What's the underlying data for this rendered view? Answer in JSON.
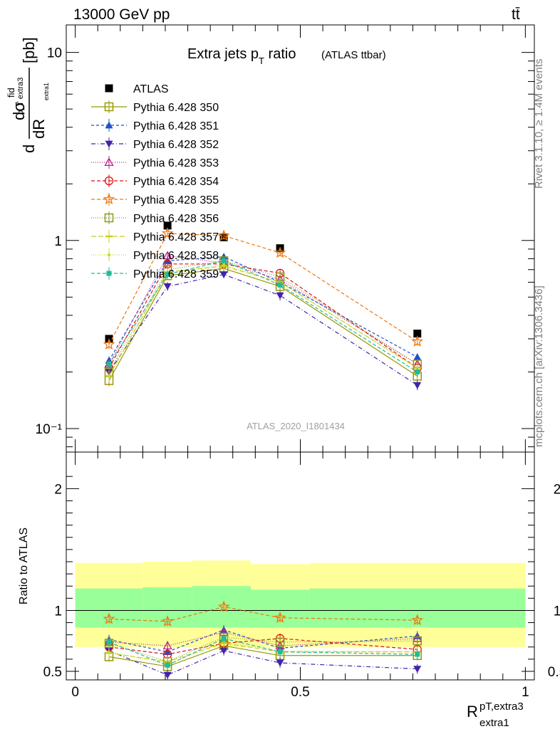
{
  "header": {
    "energy": "13000 GeV pp",
    "process": "tt̄",
    "rivet_version": "Rivet 3.1.10, ≥ 1.4M events",
    "source": "mcplots.cern.ch [arXiv:1306.3436]",
    "analysis": "ATLAS_2020_I1801434"
  },
  "chart_data": [
    {
      "type": "line",
      "title": "Extra jets p",
      "title_sub": "T",
      "title_tail": " ratio",
      "subtitle": "(ATLAS ttbar)",
      "ylabel_parts": {
        "d": "d",
        "sigma": "dσ",
        "fid": "fid",
        "dR": "dR",
        "R_sub": "p_T extra3",
        "dR_sub": "extra1",
        "unit": "[pb]"
      },
      "yscale": "log",
      "ylim": [
        0.075,
        14
      ],
      "y_ticks": [
        {
          "value": 10,
          "label": "10"
        },
        {
          "value": 1,
          "label": "1"
        },
        {
          "value": 0.1,
          "label": "10⁻¹"
        }
      ],
      "xlim": [
        -0.02,
        1.02
      ],
      "legend_position": "top-left",
      "x": [
        0.075,
        0.205,
        0.33,
        0.455,
        0.76
      ],
      "series": [
        {
          "name": "ATLAS",
          "color": "#000000",
          "marker": "square-filled",
          "dash": "none",
          "values": [
            0.3,
            1.2,
            1.04,
            0.91,
            0.32
          ],
          "err": [
            0.012,
            0.03,
            0.03,
            0.03,
            0.012
          ]
        },
        {
          "name": "Pythia 6.428 350",
          "color": "#999900",
          "marker": "square-open",
          "dash": "solid",
          "values": [
            0.18,
            0.65,
            0.71,
            0.57,
            0.19
          ],
          "err": [
            0.012,
            0.03,
            0.03,
            0.03,
            0.01
          ]
        },
        {
          "name": "Pythia 6.428 351",
          "color": "#1f50c8",
          "marker": "triangle-up-filled",
          "dash": "4,3",
          "values": [
            0.23,
            0.78,
            0.82,
            0.6,
            0.24
          ],
          "err": [
            0.012,
            0.03,
            0.03,
            0.03,
            0.01
          ]
        },
        {
          "name": "Pythia 6.428 352",
          "color": "#4422aa",
          "marker": "triangle-down-filled",
          "dash": "6,3,1,3",
          "values": [
            0.2,
            0.57,
            0.66,
            0.51,
            0.17
          ],
          "err": [
            0.012,
            0.03,
            0.03,
            0.03,
            0.01
          ]
        },
        {
          "name": "Pythia 6.428 353",
          "color": "#bb2288",
          "marker": "triangle-up-open",
          "dash": "1,2",
          "values": [
            0.22,
            0.83,
            0.76,
            0.62,
            0.22
          ],
          "err": [
            0.012,
            0.03,
            0.03,
            0.03,
            0.01
          ]
        },
        {
          "name": "Pythia 6.428 354",
          "color": "#dd1111",
          "marker": "circle-open",
          "dash": "5,3",
          "values": [
            0.21,
            0.75,
            0.75,
            0.67,
            0.21
          ],
          "err": [
            0.012,
            0.03,
            0.03,
            0.03,
            0.01
          ]
        },
        {
          "name": "Pythia 6.428 355",
          "color": "#ee7711",
          "marker": "star-open",
          "dash": "5,3",
          "values": [
            0.28,
            1.09,
            1.06,
            0.86,
            0.29
          ],
          "err": [
            0.015,
            0.05,
            0.05,
            0.04,
            0.015
          ]
        },
        {
          "name": "Pythia 6.428 356",
          "color": "#88991a",
          "marker": "square-open",
          "dash": "1,2",
          "values": [
            0.2,
            0.7,
            0.78,
            0.64,
            0.22
          ],
          "err": [
            0.012,
            0.03,
            0.03,
            0.03,
            0.01
          ]
        },
        {
          "name": "Pythia 6.428 357",
          "color": "#cccc22",
          "marker": "dash",
          "dash": "7,3",
          "values": [
            0.19,
            0.68,
            0.73,
            0.6,
            0.21
          ],
          "err": [
            0.012,
            0.03,
            0.03,
            0.03,
            0.01
          ]
        },
        {
          "name": "Pythia 6.428 358",
          "color": "#bbdd33",
          "marker": "dot",
          "dash": "1,2",
          "values": [
            0.19,
            0.67,
            0.74,
            0.6,
            0.21
          ],
          "err": [
            0.012,
            0.03,
            0.03,
            0.03,
            0.01
          ]
        },
        {
          "name": "Pythia 6.428 359",
          "color": "#22bb99",
          "marker": "square-filled-small",
          "dash": "5,3",
          "values": [
            0.22,
            0.66,
            0.78,
            0.58,
            0.2
          ],
          "err": [
            0.012,
            0.03,
            0.03,
            0.03,
            0.01
          ]
        }
      ]
    },
    {
      "type": "line",
      "ylabel": "Ratio to ATLAS",
      "xlabel": "R",
      "xlabel_sup": "pT,extra3",
      "xlabel_sub": "extra1",
      "ylim": [
        0.43,
        2.3
      ],
      "y_ticks": [
        {
          "value": 2,
          "label": "2"
        },
        {
          "value": 1,
          "label": "1"
        },
        {
          "value": 0.5,
          "label": "0.5"
        }
      ],
      "x_ticks": [
        {
          "value": 0,
          "label": "0"
        },
        {
          "value": 0.5,
          "label": "0.5"
        },
        {
          "value": 1,
          "label": "1"
        }
      ],
      "xlim": [
        -0.02,
        1.02
      ],
      "bands": {
        "edges": [
          0,
          0.15,
          0.26,
          0.39,
          0.52,
          1.0
        ],
        "outer_lo": [
          0.7,
          0.7,
          0.7,
          0.7,
          0.7
        ],
        "outer_hi": [
          1.39,
          1.4,
          1.41,
          1.38,
          1.39
        ],
        "inner_lo": [
          0.86,
          0.86,
          0.86,
          0.86,
          0.86
        ],
        "inner_hi": [
          1.18,
          1.19,
          1.2,
          1.17,
          1.18
        ],
        "outer_color": "#ffff99",
        "inner_color": "#99ff99"
      },
      "x": [
        0.075,
        0.205,
        0.33,
        0.455,
        0.76
      ],
      "series": [
        {
          "name": "Pythia 6.428 350",
          "values": [
            0.62,
            0.54,
            0.71,
            0.63,
            0.63
          ]
        },
        {
          "name": "Pythia 6.428 351",
          "values": [
            0.76,
            0.66,
            0.84,
            0.69,
            0.79
          ]
        },
        {
          "name": "Pythia 6.428 352",
          "values": [
            0.67,
            0.47,
            0.67,
            0.57,
            0.52
          ]
        },
        {
          "name": "Pythia 6.428 353",
          "values": [
            0.74,
            0.71,
            0.82,
            0.71,
            0.77
          ]
        },
        {
          "name": "Pythia 6.428 354",
          "values": [
            0.7,
            0.64,
            0.73,
            0.77,
            0.68
          ]
        },
        {
          "name": "Pythia 6.428 355",
          "values": [
            0.93,
            0.91,
            1.03,
            0.94,
            0.92
          ]
        },
        {
          "name": "Pythia 6.428 356",
          "values": [
            0.73,
            0.58,
            0.78,
            0.74,
            0.75
          ]
        },
        {
          "name": "Pythia 6.428 357",
          "values": [
            0.65,
            0.58,
            0.73,
            0.66,
            0.66
          ]
        },
        {
          "name": "Pythia 6.428 358",
          "values": [
            0.66,
            0.56,
            0.74,
            0.67,
            0.66
          ]
        },
        {
          "name": "Pythia 6.428 359",
          "values": [
            0.74,
            0.55,
            0.77,
            0.66,
            0.64
          ]
        }
      ]
    }
  ]
}
